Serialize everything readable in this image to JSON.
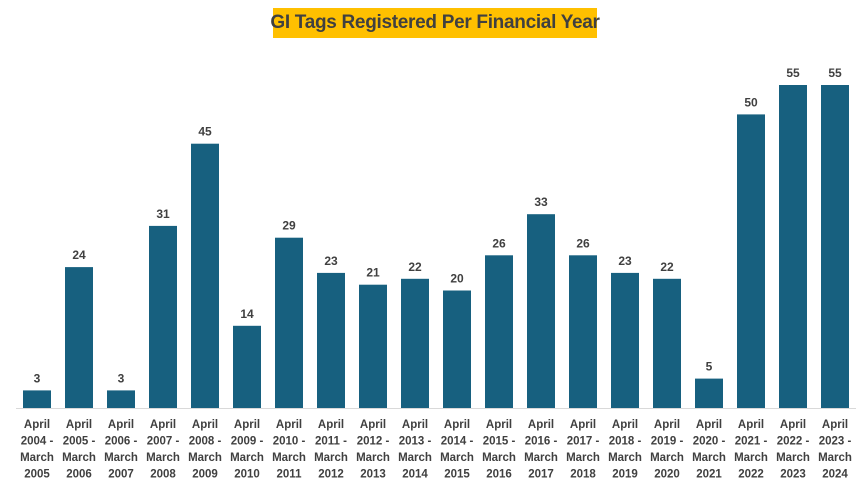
{
  "chart_data": {
    "type": "bar",
    "title": "GI Tags Registered Per Financial Year",
    "xlabel": "",
    "ylabel": "",
    "categories": [
      [
        "April",
        "2004 -",
        "March",
        "2005"
      ],
      [
        "April",
        "2005 -",
        "March",
        "2006"
      ],
      [
        "April",
        "2006 -",
        "March",
        "2007"
      ],
      [
        "April",
        "2007 -",
        "March",
        "2008"
      ],
      [
        "April",
        "2008 -",
        "March",
        "2009"
      ],
      [
        "April",
        "2009 -",
        "March",
        "2010"
      ],
      [
        "April",
        "2010 -",
        "March",
        "2011"
      ],
      [
        "April",
        "2011 -",
        "March",
        "2012"
      ],
      [
        "April",
        "2012 -",
        "March",
        "2013"
      ],
      [
        "April",
        "2013 -",
        "March",
        "2014"
      ],
      [
        "April",
        "2014 -",
        "March",
        "2015"
      ],
      [
        "April",
        "2015 -",
        "March",
        "2016"
      ],
      [
        "April",
        "2016 -",
        "March",
        "2017"
      ],
      [
        "April",
        "2017 -",
        "March",
        "2018"
      ],
      [
        "April",
        "2018 -",
        "March",
        "2019"
      ],
      [
        "April",
        "2019 -",
        "March",
        "2020"
      ],
      [
        "April",
        "2020 -",
        "March",
        "2021"
      ],
      [
        "April",
        "2021 -",
        "March",
        "2022"
      ],
      [
        "April",
        "2022 -",
        "March",
        "2023"
      ],
      [
        "April",
        "2023 -",
        "March",
        "2024"
      ]
    ],
    "values": [
      3,
      24,
      3,
      31,
      45,
      14,
      29,
      23,
      21,
      22,
      20,
      26,
      33,
      26,
      23,
      22,
      5,
      50,
      55,
      55
    ],
    "ylim": [
      0,
      55
    ],
    "grid": false,
    "data_labels": true,
    "bar_color": "#17607f",
    "title_background": "#ffc000",
    "text_color": "#404040"
  }
}
